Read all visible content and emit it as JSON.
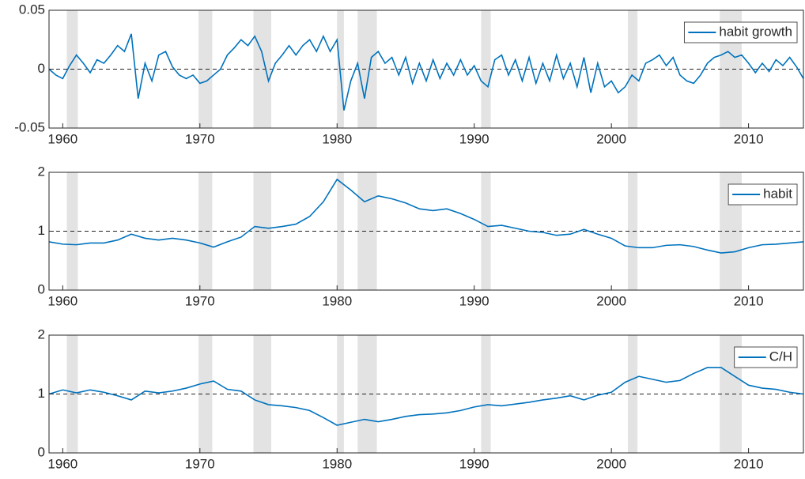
{
  "recessions": [
    [
      1960.3,
      1961.1
    ],
    [
      1969.9,
      1970.9
    ],
    [
      1973.9,
      1975.2
    ],
    [
      1980.0,
      1980.5
    ],
    [
      1981.5,
      1982.9
    ],
    [
      1990.5,
      1991.2
    ],
    [
      2001.2,
      2001.9
    ],
    [
      2007.9,
      2009.5
    ]
  ],
  "chart_data": [
    {
      "type": "line",
      "x": [
        1959,
        1959.5,
        1960,
        1960.5,
        1961,
        1961.5,
        1962,
        1962.5,
        1963,
        1963.5,
        1964,
        1964.5,
        1965,
        1965.5,
        1966,
        1966.5,
        1967,
        1967.5,
        1968,
        1968.5,
        1969,
        1969.5,
        1970,
        1970.5,
        1971,
        1971.5,
        1972,
        1972.5,
        1973,
        1973.5,
        1974,
        1974.5,
        1975,
        1975.5,
        1976,
        1976.5,
        1977,
        1977.5,
        1978,
        1978.5,
        1979,
        1979.5,
        1980,
        1980.5,
        1981,
        1981.5,
        1982,
        1982.5,
        1983,
        1983.5,
        1984,
        1984.5,
        1985,
        1985.5,
        1986,
        1986.5,
        1987,
        1987.5,
        1988,
        1988.5,
        1989,
        1989.5,
        1990,
        1990.5,
        1991,
        1991.5,
        1992,
        1992.5,
        1993,
        1993.5,
        1994,
        1994.5,
        1995,
        1995.5,
        1996,
        1996.5,
        1997,
        1997.5,
        1998,
        1998.5,
        1999,
        1999.5,
        2000,
        2000.5,
        2001,
        2001.5,
        2002,
        2002.5,
        2003,
        2003.5,
        2004,
        2004.5,
        2005,
        2005.5,
        2006,
        2006.5,
        2007,
        2007.5,
        2008,
        2008.5,
        2009,
        2009.5,
        2010,
        2010.5,
        2011,
        2011.5,
        2012,
        2012.5,
        2013,
        2013.5,
        2014
      ],
      "series": [
        {
          "name": "habit growth",
          "color": "#0072bd",
          "values": [
            0,
            -0.005,
            -0.008,
            0.003,
            0.012,
            0.005,
            -0.003,
            0.008,
            0.005,
            0.012,
            0.02,
            0.015,
            0.03,
            -0.025,
            0.005,
            -0.01,
            0.012,
            0.015,
            0.002,
            -0.005,
            -0.008,
            -0.005,
            -0.012,
            -0.01,
            -0.005,
            0,
            0.012,
            0.018,
            0.025,
            0.02,
            0.028,
            0.015,
            -0.01,
            0.005,
            0.012,
            0.02,
            0.012,
            0.02,
            0.025,
            0.015,
            0.028,
            0.015,
            0.025,
            -0.035,
            -0.01,
            0.005,
            -0.025,
            0.01,
            0.015,
            0.005,
            0.01,
            -0.005,
            0.01,
            -0.012,
            0.005,
            -0.01,
            0.008,
            -0.008,
            0.005,
            -0.005,
            0.008,
            -0.005,
            0.003,
            -0.01,
            -0.015,
            0.008,
            0.012,
            -0.005,
            0.008,
            -0.01,
            0.01,
            -0.012,
            0.005,
            -0.01,
            0.012,
            -0.008,
            0.005,
            -0.015,
            0.01,
            -0.02,
            0.005,
            -0.015,
            -0.01,
            -0.02,
            -0.015,
            -0.005,
            -0.01,
            0.005,
            0.008,
            0.012,
            0.003,
            0.01,
            -0.005,
            -0.01,
            -0.012,
            -0.005,
            0.005,
            0.01,
            0.012,
            0.015,
            0.01,
            0.012,
            0.005,
            -0.003,
            0.005,
            -0.002,
            0.008,
            0.003,
            0.01,
            0.002,
            -0.008
          ]
        }
      ],
      "xlim": [
        1959,
        2014
      ],
      "xticks": [
        1960,
        1970,
        1980,
        1990,
        2000,
        2010
      ],
      "ylim": [
        -0.05,
        0.05
      ],
      "yticks": [
        -0.05,
        0,
        0.05
      ],
      "reference_line": 0,
      "legend": "upper right"
    },
    {
      "type": "line",
      "x": [
        1959,
        1960,
        1961,
        1962,
        1963,
        1964,
        1965,
        1966,
        1967,
        1968,
        1969,
        1970,
        1971,
        1972,
        1973,
        1974,
        1975,
        1976,
        1977,
        1978,
        1979,
        1980,
        1981,
        1982,
        1983,
        1984,
        1985,
        1986,
        1987,
        1988,
        1989,
        1990,
        1991,
        1992,
        1993,
        1994,
        1995,
        1996,
        1997,
        1998,
        1999,
        2000,
        2001,
        2002,
        2003,
        2004,
        2005,
        2006,
        2007,
        2008,
        2009,
        2010,
        2011,
        2012,
        2013,
        2014
      ],
      "series": [
        {
          "name": "habit",
          "color": "#0072bd",
          "values": [
            0.82,
            0.78,
            0.77,
            0.8,
            0.8,
            0.85,
            0.95,
            0.88,
            0.85,
            0.88,
            0.85,
            0.8,
            0.73,
            0.82,
            0.9,
            1.08,
            1.05,
            1.08,
            1.12,
            1.25,
            1.5,
            1.88,
            1.7,
            1.5,
            1.6,
            1.55,
            1.48,
            1.38,
            1.35,
            1.38,
            1.3,
            1.2,
            1.08,
            1.1,
            1.05,
            1.0,
            0.98,
            0.93,
            0.95,
            1.03,
            0.95,
            0.88,
            0.75,
            0.72,
            0.72,
            0.76,
            0.77,
            0.74,
            0.68,
            0.63,
            0.65,
            0.72,
            0.77,
            0.78,
            0.8,
            0.82
          ]
        }
      ],
      "xlim": [
        1959,
        2014
      ],
      "xticks": [
        1960,
        1970,
        1980,
        1990,
        2000,
        2010
      ],
      "ylim": [
        0,
        2
      ],
      "yticks": [
        0,
        1,
        2
      ],
      "reference_line": 1,
      "legend": "upper right"
    },
    {
      "type": "line",
      "x": [
        1959,
        1960,
        1961,
        1962,
        1963,
        1964,
        1965,
        1966,
        1967,
        1968,
        1969,
        1970,
        1971,
        1972,
        1973,
        1974,
        1975,
        1976,
        1977,
        1978,
        1979,
        1980,
        1981,
        1982,
        1983,
        1984,
        1985,
        1986,
        1987,
        1988,
        1989,
        1990,
        1991,
        1992,
        1993,
        1994,
        1995,
        1996,
        1997,
        1998,
        1999,
        2000,
        2001,
        2002,
        2003,
        2004,
        2005,
        2006,
        2007,
        2008,
        2009,
        2010,
        2011,
        2012,
        2013,
        2014
      ],
      "series": [
        {
          "name": "C/H",
          "color": "#0072bd",
          "values": [
            1.0,
            1.07,
            1.02,
            1.07,
            1.03,
            0.97,
            0.9,
            1.05,
            1.02,
            1.05,
            1.1,
            1.17,
            1.22,
            1.08,
            1.05,
            0.9,
            0.82,
            0.8,
            0.77,
            0.72,
            0.6,
            0.47,
            0.52,
            0.57,
            0.53,
            0.57,
            0.62,
            0.65,
            0.66,
            0.68,
            0.72,
            0.78,
            0.82,
            0.8,
            0.83,
            0.86,
            0.9,
            0.93,
            0.97,
            0.9,
            0.98,
            1.03,
            1.2,
            1.3,
            1.25,
            1.2,
            1.23,
            1.35,
            1.45,
            1.45,
            1.3,
            1.15,
            1.1,
            1.08,
            1.03,
            1.0
          ]
        }
      ],
      "xlim": [
        1959,
        2014
      ],
      "xticks": [
        1960,
        1970,
        1980,
        1990,
        2000,
        2010
      ],
      "ylim": [
        0,
        2
      ],
      "yticks": [
        0,
        1,
        2
      ],
      "reference_line": 1,
      "legend": "upper right"
    }
  ]
}
